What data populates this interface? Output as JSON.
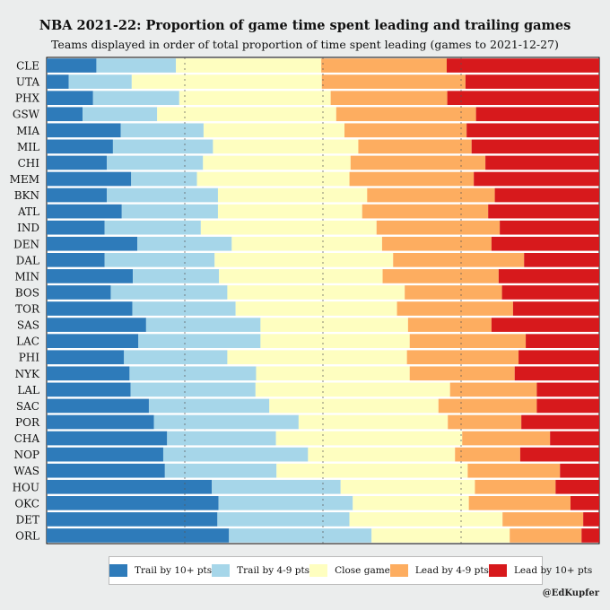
{
  "chart_data": {
    "type": "bar",
    "orientation": "horizontal",
    "stacked": true,
    "title": "NBA 2021-22: Proportion of game time spent leading and trailing games",
    "subtitle": "Teams displayed in order of total proportion of time spent leading (games to 2021-12-27)",
    "xlim": [
      0,
      1
    ],
    "categories": [
      "CLE",
      "UTA",
      "PHX",
      "GSW",
      "MIA",
      "MIL",
      "CHI",
      "MEM",
      "BKN",
      "ATL",
      "IND",
      "DEN",
      "DAL",
      "MIN",
      "BOS",
      "TOR",
      "SAS",
      "LAC",
      "PHI",
      "NYK",
      "LAL",
      "SAC",
      "POR",
      "CHA",
      "NOP",
      "WAS",
      "HOU",
      "OKC",
      "DET",
      "ORL"
    ],
    "series": [
      {
        "name": "Trail by 10+ pts",
        "color": "#2e7bba",
        "values": [
          0.09,
          0.04,
          0.084,
          0.065,
          0.134,
          0.12,
          0.109,
          0.153,
          0.109,
          0.136,
          0.105,
          0.164,
          0.105,
          0.156,
          0.116,
          0.155,
          0.18,
          0.166,
          0.14,
          0.15,
          0.152,
          0.185,
          0.194,
          0.218,
          0.211,
          0.214,
          0.299,
          0.311,
          0.309,
          0.33
        ]
      },
      {
        "name": "Trail by 4-9 pts",
        "color": "#a6d6e9",
        "values": [
          0.144,
          0.114,
          0.156,
          0.135,
          0.15,
          0.181,
          0.174,
          0.119,
          0.201,
          0.174,
          0.174,
          0.171,
          0.199,
          0.156,
          0.211,
          0.187,
          0.207,
          0.221,
          0.187,
          0.229,
          0.226,
          0.218,
          0.262,
          0.197,
          0.262,
          0.202,
          0.233,
          0.243,
          0.239,
          0.258
        ]
      },
      {
        "name": "Close game",
        "color": "#fefec0",
        "values": [
          0.263,
          0.344,
          0.274,
          0.324,
          0.255,
          0.263,
          0.267,
          0.276,
          0.27,
          0.261,
          0.318,
          0.272,
          0.323,
          0.296,
          0.321,
          0.292,
          0.267,
          0.27,
          0.325,
          0.278,
          0.352,
          0.306,
          0.27,
          0.337,
          0.266,
          0.346,
          0.243,
          0.21,
          0.277,
          0.25
        ]
      },
      {
        "name": "Lead by 4-9 pts",
        "color": "#fdad60",
        "values": [
          0.227,
          0.26,
          0.211,
          0.253,
          0.221,
          0.205,
          0.244,
          0.225,
          0.231,
          0.228,
          0.223,
          0.198,
          0.237,
          0.21,
          0.176,
          0.21,
          0.151,
          0.21,
          0.202,
          0.19,
          0.157,
          0.178,
          0.133,
          0.159,
          0.118,
          0.167,
          0.146,
          0.184,
          0.146,
          0.13
        ]
      },
      {
        "name": "Lead by 10+ pts",
        "color": "#d7191c",
        "values": [
          0.276,
          0.242,
          0.275,
          0.223,
          0.24,
          0.231,
          0.206,
          0.227,
          0.189,
          0.201,
          0.18,
          0.195,
          0.136,
          0.182,
          0.176,
          0.156,
          0.195,
          0.133,
          0.146,
          0.153,
          0.113,
          0.113,
          0.141,
          0.089,
          0.143,
          0.071,
          0.079,
          0.052,
          0.029,
          0.032
        ]
      }
    ]
  },
  "credit": "@EdKupfer"
}
